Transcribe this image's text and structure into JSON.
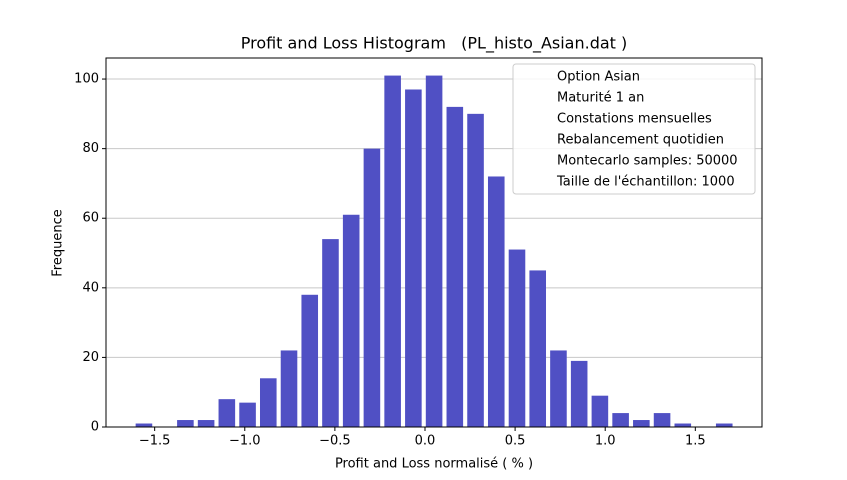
{
  "chart_data": {
    "type": "histogram",
    "title": "Profit and Loss Histogram   (PL_histo_Asian.dat )",
    "xlabel": "Profit and Loss normalisé ( % )",
    "ylabel": "Frequence",
    "bins": [
      -1.617,
      -1.502,
      -1.387,
      -1.272,
      -1.157,
      -1.042,
      -0.927,
      -0.812,
      -0.697,
      -0.582,
      -0.467,
      -0.352,
      -0.237,
      -0.122,
      -0.007,
      0.108,
      0.223,
      0.338,
      0.453,
      0.568,
      0.683,
      0.798,
      0.913,
      1.028,
      1.143,
      1.258,
      1.373,
      1.488,
      1.603,
      1.718
    ],
    "counts": [
      1,
      0,
      2,
      2,
      8,
      7,
      14,
      22,
      38,
      54,
      61,
      80,
      101,
      97,
      101,
      92,
      90,
      72,
      51,
      45,
      22,
      19,
      9,
      4,
      2,
      4,
      1,
      0,
      1
    ],
    "color": "#5050c4",
    "xlim": [
      -1.77,
      1.87
    ],
    "xticks": [
      {
        "value": -1.5,
        "label": "−1.5"
      },
      {
        "value": -1.0,
        "label": "−1.0"
      },
      {
        "value": -0.5,
        "label": "−0.5"
      },
      {
        "value": 0,
        "label": "0.0"
      },
      0.5,
      {
        "value": 1.0,
        "label": "1.0"
      },
      1.5
    ],
    "ylim": [
      0,
      106.05
    ],
    "yticks": [
      0,
      20,
      40,
      60,
      80,
      100
    ],
    "grid": "y",
    "legend_position": "upper right",
    "legend": [
      "Option Asian",
      "Maturité 1 an",
      "Constations mensuelles",
      "Rebalancement quotidien",
      "Montecarlo samples: 50000",
      "Taille de l'échantillon: 1000"
    ]
  }
}
